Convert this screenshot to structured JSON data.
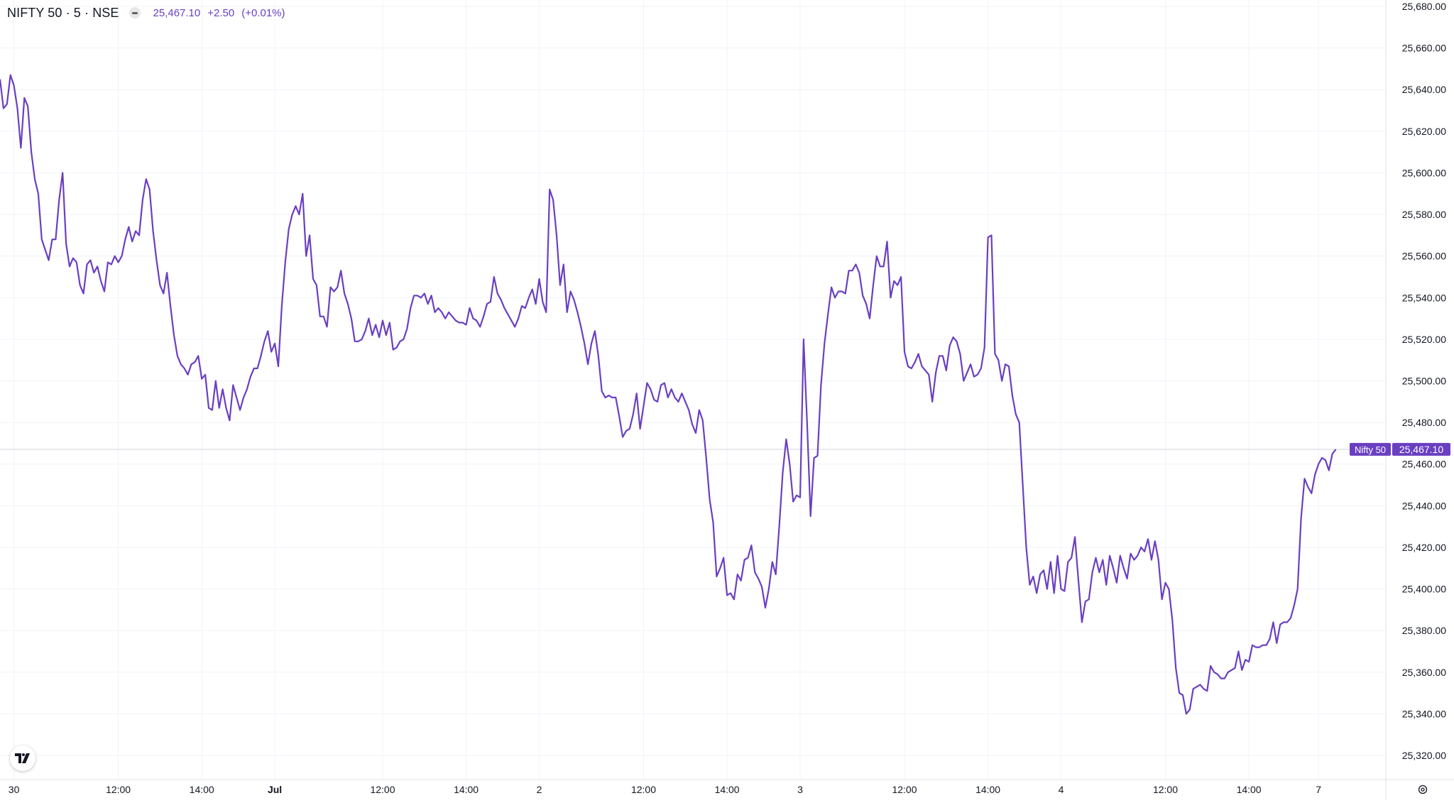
{
  "header": {
    "symbol": "NIFTY 50 · 5 · NSE",
    "last": "25,467.10",
    "change": "+2.50",
    "change_pct": "(+0.01%)"
  },
  "logo": {
    "text": "𝟕"
  },
  "price_tag": {
    "name": "Nifty 50",
    "value": "25,467.10"
  },
  "colors": {
    "line": "#6a3fc1",
    "grid": "#f0f3fa",
    "axis_text": "#131722",
    "tag_bg": "#6a3fc1"
  },
  "icons": {
    "settings": "gear-icon",
    "logo": "tradingview-logo-icon"
  },
  "chart_data": {
    "type": "line",
    "ylim": [
      25310,
      25680
    ],
    "y_ticks": [
      25680,
      25660,
      25640,
      25620,
      25600,
      25580,
      25560,
      25540,
      25520,
      25500,
      25480,
      25460,
      25440,
      25420,
      25400,
      25380,
      25360,
      25340,
      25320
    ],
    "y_tick_labels": [
      "25,680.00",
      "25,660.00",
      "25,640.00",
      "25,620.00",
      "25,600.00",
      "25,580.00",
      "25,560.00",
      "25,540.00",
      "25,520.00",
      "25,500.00",
      "25,480.00",
      "25,460.00",
      "25,440.00",
      "25,420.00",
      "25,400.00",
      "25,380.00",
      "25,360.00",
      "25,340.00",
      "25,320.00"
    ],
    "x_tick_labels": [
      "30",
      "12:00",
      "14:00",
      "Jul",
      "12:00",
      "14:00",
      "2",
      "12:00",
      "14:00",
      "3",
      "12:00",
      "14:00",
      "4",
      "12:00",
      "14:00",
      "7"
    ],
    "x_tick_index": [
      4,
      34,
      58,
      79,
      110,
      134,
      155,
      185,
      209,
      230,
      260,
      284,
      305,
      335,
      359,
      379
    ],
    "grid": true,
    "last_value": 25467.1,
    "series": [
      {
        "values": [
          25645,
          25631,
          25633,
          25647,
          25642,
          25631,
          25612,
          25636,
          25632,
          25610,
          25597,
          25590,
          25568,
          25563,
          25558,
          25568,
          25568,
          25587,
          25600,
          25566,
          25555,
          25559,
          25557,
          25546,
          25542,
          25556,
          25558,
          25552,
          25555,
          25548,
          25543,
          25557,
          25556,
          25560,
          25557,
          25560,
          25568,
          25574,
          25567,
          25572,
          25570,
          25587,
          25597,
          25592,
          25572,
          25558,
          25546,
          25542,
          25552,
          25536,
          25522,
          25512,
          25508,
          25506,
          25503,
          25508,
          25509,
          25512,
          25501,
          25503,
          25487,
          25486,
          25500,
          25487,
          25496,
          25487,
          25481,
          25498,
          25492,
          25486,
          25492,
          25496,
          25502,
          25506,
          25506,
          25512,
          25519,
          25524,
          25514,
          25518,
          25507,
          25536,
          25557,
          25573,
          25580,
          25584,
          25580,
          25590,
          25560,
          25570,
          25549,
          25546,
          25531,
          25531,
          25526,
          25545,
          25543,
          25545,
          25553,
          25542,
          25537,
          25530,
          25519,
          25519,
          25520,
          25524,
          25530,
          25522,
          25527,
          25521,
          25529,
          25522,
          25528,
          25515,
          25516,
          25519,
          25520,
          25525,
          25535,
          25541,
          25541,
          25540,
          25542,
          25537,
          25541,
          25533,
          25535,
          25533,
          25530,
          25533,
          25531,
          25529,
          25528,
          25528,
          25527,
          25535,
          25530,
          25529,
          25526,
          25531,
          25537,
          25538,
          25550,
          25542,
          25539,
          25535,
          25532,
          25529,
          25526,
          25530,
          25536,
          25535,
          25540,
          25544,
          25537,
          25549,
          25538,
          25533,
          25592,
          25587,
          25570,
          25546,
          25556,
          25533,
          25543,
          25539,
          25533,
          25526,
          25518,
          25508,
          25518,
          25524,
          25512,
          25495,
          25492,
          25493,
          25492,
          25492,
          25483,
          25473,
          25476,
          25477,
          25484,
          25494,
          25477,
          25488,
          25499,
          25496,
          25491,
          25490,
          25498,
          25499,
          25492,
          25496,
          25492,
          25490,
          25494,
          25490,
          25486,
          25479,
          25475,
          25486,
          25481,
          25463,
          25443,
          25432,
          25406,
          25410,
          25415,
          25397,
          25398,
          25395,
          25407,
          25404,
          25414,
          25415,
          25421,
          25408,
          25405,
          25401,
          25391,
          25400,
          25413,
          25407,
          25430,
          25456,
          25472,
          25460,
          25442,
          25445,
          25444,
          25520,
          25480,
          25435,
          25463,
          25464,
          25498,
          25518,
          25532,
          25545,
          25540,
          25543,
          25543,
          25542,
          25553,
          25553,
          25556,
          25552,
          25541,
          25537,
          25530,
          25546,
          25560,
          25555,
          25555,
          25567,
          25540,
          25548,
          25546,
          25550,
          25514,
          25507,
          25506,
          25509,
          25513,
          25507,
          25505,
          25503,
          25490,
          25504,
          25512,
          25512,
          25505,
          25517,
          25521,
          25519,
          25513,
          25500,
          25504,
          25508,
          25502,
          25503,
          25506,
          25516,
          25569,
          25570,
          25513,
          25510,
          25500,
          25508,
          25507,
          25493,
          25484,
          25480,
          25450,
          25420,
          25402,
          25406,
          25398,
          25407,
          25409,
          25400,
          25413,
          25398,
          25416,
          25400,
          25399,
          25413,
          25415,
          25425,
          25404,
          25384,
          25394,
          25395,
          25408,
          25415,
          25408,
          25414,
          25402,
          25416,
          25410,
          25403,
          25416,
          25410,
          25405,
          25417,
          25414,
          25416,
          25420,
          25418,
          25424,
          25414,
          25423,
          25414,
          25395,
          25403,
          25400,
          25385,
          25362,
          25350,
          25349,
          25340,
          25342,
          25352,
          25353,
          25354,
          25352,
          25351,
          25363,
          25360,
          25359,
          25357,
          25357,
          25360,
          25361,
          25362,
          25370,
          25361,
          25366,
          25365,
          25373,
          25372,
          25372,
          25373,
          25373,
          25376,
          25384,
          25374,
          25383,
          25384,
          25384,
          25386,
          25392,
          25400,
          25434,
          25453,
          25449,
          25446,
          25455,
          25460,
          25463,
          25462,
          25457,
          25465,
          25467.1
        ]
      }
    ]
  }
}
